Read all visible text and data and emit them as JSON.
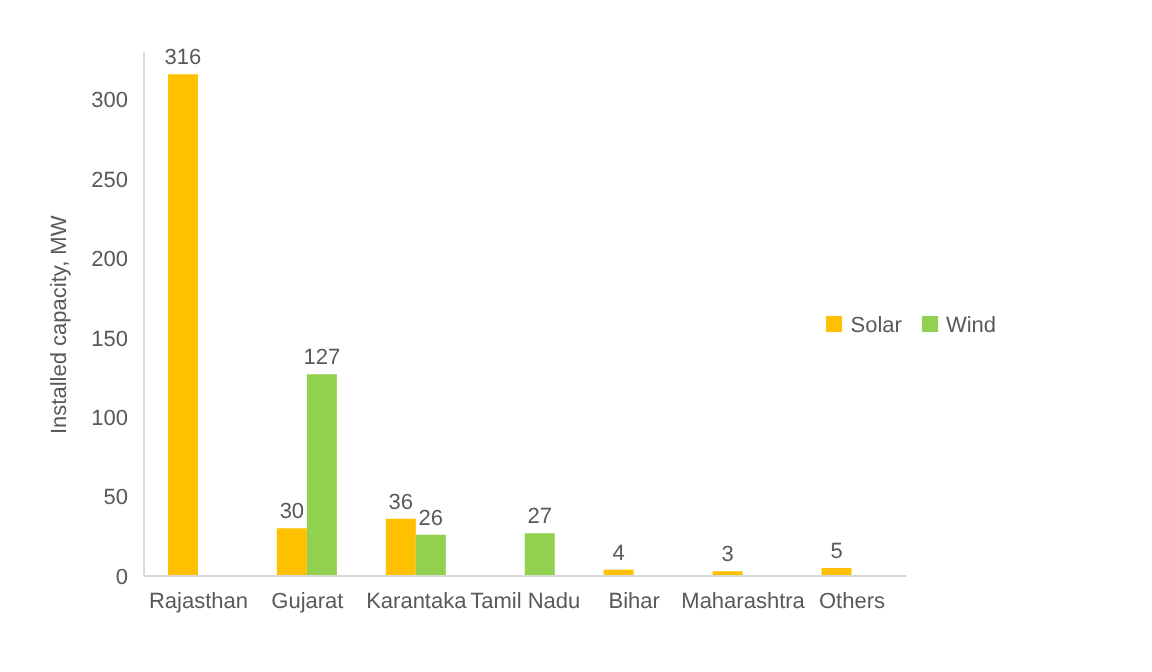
{
  "chart_data": {
    "type": "bar",
    "ylabel": "Installed capacity, MW",
    "categories": [
      "Rajasthan",
      "Gujarat",
      "Karantaka",
      "Tamil Nadu",
      "Bihar",
      "Maharashtra",
      "Others"
    ],
    "series": [
      {
        "name": "Solar",
        "color": "#ffc000",
        "values": [
          316,
          30,
          36,
          null,
          4,
          3,
          5
        ]
      },
      {
        "name": "Wind",
        "color": "#92d050",
        "values": [
          null,
          127,
          26,
          27,
          null,
          null,
          null
        ]
      }
    ],
    "ylim": [
      0,
      330
    ],
    "yticks": [
      0,
      50,
      100,
      150,
      200,
      250,
      300
    ],
    "grid": false,
    "legend": "right",
    "data_labels": true
  }
}
